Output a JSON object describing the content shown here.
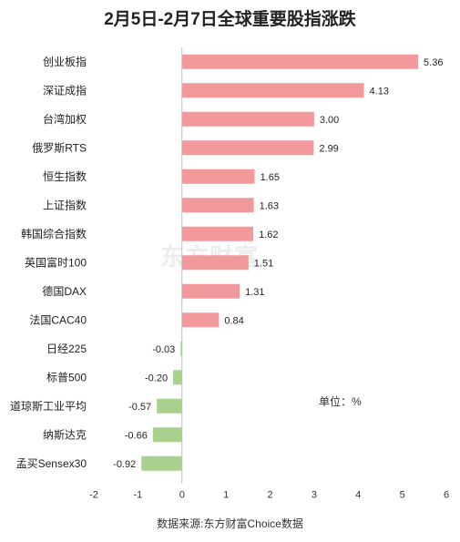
{
  "title": "2月5日-2月7日全球重要股指涨跌",
  "unit": "单位：%",
  "source": "数据来源:东方财富Choice数据",
  "watermark": "东方财富",
  "colors": {
    "positive": "#f4999b",
    "negative": "#a9d18e",
    "axis": "#bfbfbf"
  },
  "chart_data": {
    "type": "bar",
    "orientation": "horizontal",
    "title": "2月5日-2月7日全球重要股指涨跌",
    "categories": [
      "创业板指",
      "深证成指",
      "台湾加权",
      "俄罗斯RTS",
      "恒生指数",
      "上证指数",
      "韩国综合指数",
      "英国富时100",
      "德国DAX",
      "法国CAC40",
      "日经225",
      "标普500",
      "道琼斯工业平均",
      "纳斯达克",
      "孟买Sensex30"
    ],
    "values": [
      5.36,
      4.13,
      3.0,
      2.99,
      1.65,
      1.63,
      1.62,
      1.51,
      1.31,
      0.84,
      -0.03,
      -0.2,
      -0.57,
      -0.66,
      -0.92
    ],
    "value_labels": [
      "5.36",
      "4.13",
      "3.00",
      "2.99",
      "1.65",
      "1.63",
      "1.62",
      "1.51",
      "1.31",
      "0.84",
      "-0.03",
      "-0.20",
      "-0.57",
      "-0.66",
      "-0.92"
    ],
    "xlim": [
      -2,
      6
    ],
    "xticks": [
      "-2",
      "-1",
      "0",
      "1",
      "2",
      "3",
      "4",
      "5",
      "6"
    ],
    "grid": false,
    "legend": "none"
  }
}
